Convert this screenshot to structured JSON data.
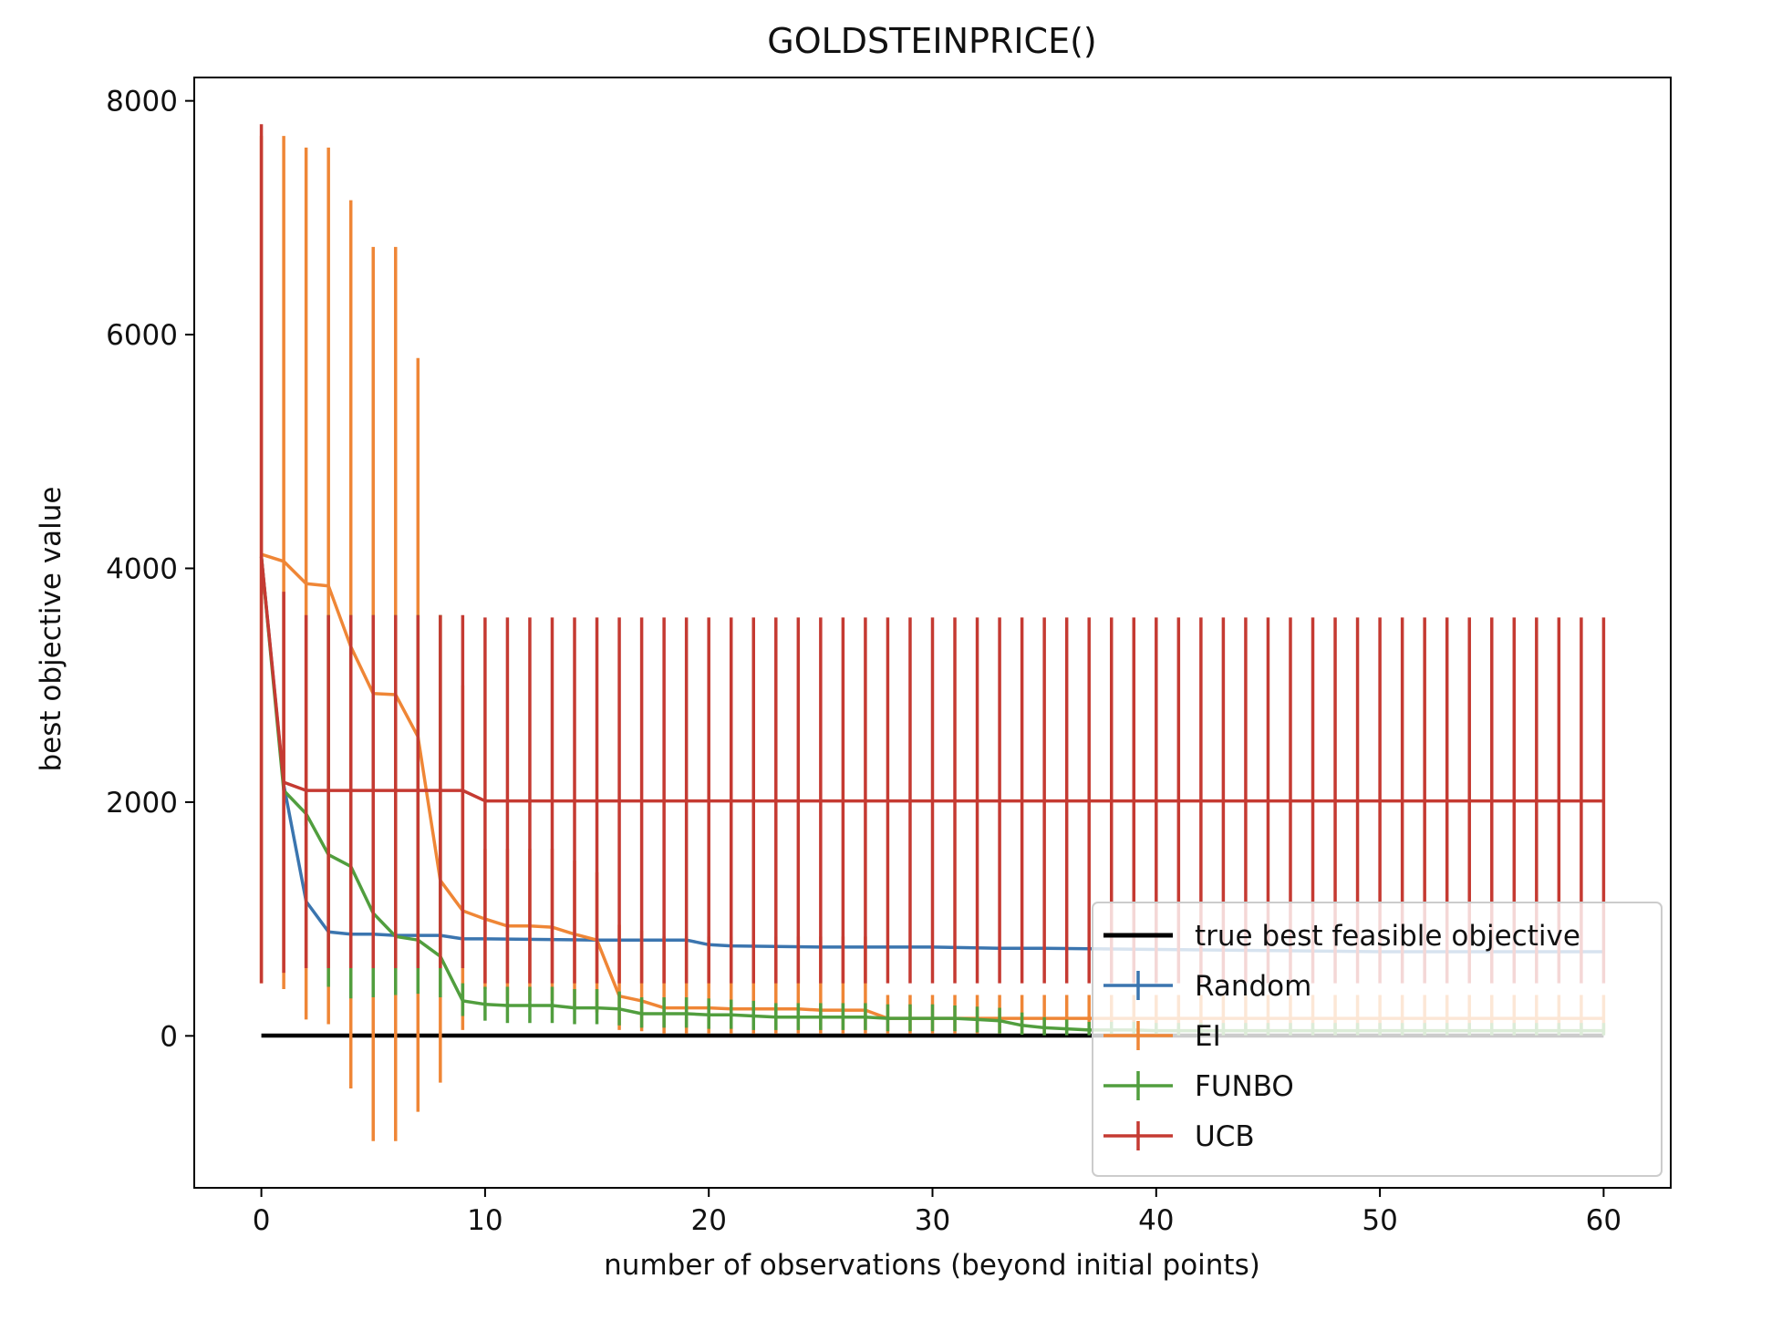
{
  "chart_data": {
    "type": "line",
    "title": "GOLDSTEINPRICE()",
    "xlabel": "number of observations (beyond initial points)",
    "ylabel": "best objective value",
    "xlim": [
      -3,
      63
    ],
    "ylim": [
      -1300,
      8200
    ],
    "xticks": [
      0,
      10,
      20,
      30,
      40,
      50,
      60
    ],
    "yticks": [
      0,
      2000,
      4000,
      6000,
      8000
    ],
    "xtick_labels": [
      "0",
      "10",
      "20",
      "30",
      "40",
      "50",
      "60"
    ],
    "ytick_labels": [
      "0",
      "2000",
      "4000",
      "6000",
      "8000"
    ],
    "grid": false,
    "legend": {
      "position": "lower-right"
    },
    "reference_line": {
      "name": "true best feasible objective",
      "value": 3,
      "x_range": [
        0,
        60
      ],
      "color": "#000000"
    },
    "series": [
      {
        "name": "Random",
        "color": "#3b75af",
        "errorbars": false,
        "x": [
          0,
          1,
          2,
          3,
          4,
          5,
          6,
          7,
          8,
          9,
          10,
          15,
          19,
          20,
          21,
          25,
          30,
          33,
          35,
          40,
          45,
          50,
          55,
          60
        ],
        "mean": [
          4100,
          2150,
          1150,
          890,
          870,
          870,
          860,
          860,
          860,
          830,
          830,
          820,
          820,
          780,
          770,
          760,
          760,
          750,
          750,
          740,
          730,
          720,
          720,
          720
        ]
      },
      {
        "name": "EI",
        "color": "#ef8636",
        "x": [
          0,
          1,
          2,
          3,
          4,
          5,
          6,
          7,
          8,
          9,
          10,
          11,
          12,
          13,
          14,
          15,
          16,
          17,
          18,
          19,
          20,
          21,
          22,
          23,
          24,
          25,
          26,
          27,
          28,
          29,
          30,
          31,
          32,
          33,
          34,
          35,
          36,
          37,
          38,
          39,
          40,
          41,
          42,
          43,
          44,
          45,
          46,
          47,
          48,
          49,
          50,
          51,
          52,
          53,
          54,
          55,
          56,
          57,
          58,
          59,
          60
        ],
        "mean": [
          4120,
          4060,
          3870,
          3850,
          3330,
          2930,
          2920,
          2560,
          1330,
          1070,
          1000,
          940,
          940,
          930,
          870,
          820,
          340,
          300,
          240,
          240,
          240,
          230,
          230,
          230,
          230,
          220,
          220,
          220,
          150,
          150,
          150,
          150,
          150,
          150,
          150,
          150,
          150,
          150,
          150,
          150,
          150,
          150,
          150,
          150,
          150,
          150,
          150,
          150,
          150,
          150,
          150,
          150,
          150,
          150,
          150,
          150,
          150,
          150,
          150,
          150,
          150
        ],
        "upper": [
          7700,
          7700,
          7600,
          7600,
          7150,
          6750,
          6750,
          5800,
          3600,
          3000,
          1600,
          1600,
          1600,
          1600,
          1500,
          1400,
          950,
          900,
          850,
          850,
          850,
          850,
          850,
          850,
          850,
          850,
          850,
          850,
          350,
          350,
          350,
          350,
          350,
          350,
          350,
          350,
          350,
          350,
          350,
          350,
          350,
          350,
          350,
          350,
          350,
          350,
          350,
          350,
          350,
          350,
          350,
          350,
          350,
          350,
          350,
          350,
          350,
          350,
          350,
          350,
          350
        ],
        "lower": [
          450,
          400,
          140,
          100,
          -450,
          -900,
          -900,
          -650,
          -400,
          50,
          400,
          300,
          300,
          300,
          250,
          200,
          50,
          40,
          20,
          20,
          20,
          20,
          20,
          20,
          20,
          20,
          20,
          20,
          20,
          20,
          20,
          20,
          20,
          20,
          20,
          20,
          20,
          20,
          20,
          20,
          20,
          20,
          20,
          20,
          20,
          20,
          20,
          20,
          20,
          20,
          20,
          20,
          20,
          20,
          20,
          20,
          20,
          20,
          20,
          20,
          20
        ]
      },
      {
        "name": "FUNBO",
        "color": "#519e3e",
        "x": [
          0,
          1,
          2,
          3,
          4,
          5,
          6,
          7,
          8,
          9,
          10,
          11,
          12,
          13,
          14,
          15,
          16,
          17,
          18,
          19,
          20,
          21,
          22,
          23,
          24,
          25,
          26,
          27,
          28,
          29,
          30,
          31,
          32,
          33,
          34,
          35,
          36,
          37,
          38,
          39,
          40,
          41,
          42,
          43,
          44,
          45,
          46,
          47,
          48,
          49,
          50,
          51,
          52,
          53,
          54,
          55,
          56,
          57,
          58,
          59,
          60
        ],
        "mean": [
          4100,
          2100,
          1900,
          1550,
          1450,
          1050,
          850,
          820,
          680,
          300,
          270,
          260,
          260,
          260,
          240,
          240,
          230,
          190,
          190,
          190,
          180,
          180,
          170,
          160,
          160,
          160,
          160,
          160,
          150,
          150,
          150,
          150,
          140,
          130,
          90,
          70,
          60,
          50,
          50,
          50,
          45,
          45,
          45,
          45,
          45,
          45,
          45,
          45,
          45,
          45,
          45,
          45,
          45,
          45,
          45,
          45,
          45,
          45,
          45,
          45,
          45
        ],
        "upper": [
          4100,
          2100,
          2000,
          3600,
          3600,
          3600,
          3600,
          3600,
          3600,
          450,
          420,
          420,
          420,
          420,
          400,
          400,
          380,
          330,
          330,
          330,
          320,
          310,
          300,
          280,
          280,
          280,
          280,
          280,
          270,
          270,
          270,
          260,
          250,
          240,
          200,
          160,
          140,
          120,
          120,
          120,
          110,
          110,
          110,
          110,
          110,
          110,
          110,
          110,
          110,
          110,
          110,
          110,
          110,
          110,
          110,
          110,
          110,
          110,
          110,
          110,
          110
        ],
        "lower": [
          4100,
          2100,
          1800,
          420,
          320,
          330,
          350,
          360,
          330,
          170,
          130,
          110,
          110,
          110,
          100,
          100,
          90,
          70,
          70,
          70,
          60,
          60,
          50,
          50,
          50,
          50,
          50,
          50,
          40,
          40,
          40,
          40,
          30,
          20,
          10,
          5,
          5,
          5,
          5,
          5,
          5,
          5,
          5,
          5,
          5,
          5,
          5,
          5,
          5,
          5,
          5,
          5,
          5,
          5,
          5,
          5,
          5,
          5,
          5,
          5,
          5
        ]
      },
      {
        "name": "UCB",
        "color": "#c53a32",
        "x": [
          0,
          1,
          2,
          3,
          4,
          5,
          6,
          7,
          8,
          9,
          10,
          11,
          12,
          13,
          14,
          15,
          16,
          17,
          18,
          19,
          20,
          21,
          22,
          23,
          24,
          25,
          26,
          27,
          28,
          29,
          30,
          31,
          32,
          33,
          34,
          35,
          36,
          37,
          38,
          39,
          40,
          41,
          42,
          43,
          44,
          45,
          46,
          47,
          48,
          49,
          50,
          51,
          52,
          53,
          54,
          55,
          56,
          57,
          58,
          59,
          60
        ],
        "mean": [
          4100,
          2170,
          2100,
          2100,
          2100,
          2100,
          2100,
          2100,
          2100,
          2100,
          2010,
          2010,
          2010,
          2010,
          2010,
          2010,
          2010,
          2010,
          2010,
          2010,
          2010,
          2010,
          2010,
          2010,
          2010,
          2010,
          2010,
          2010,
          2010,
          2010,
          2010,
          2010,
          2010,
          2010,
          2010,
          2010,
          2010,
          2010,
          2010,
          2010,
          2010,
          2010,
          2010,
          2010,
          2010,
          2010,
          2010,
          2010,
          2010,
          2010,
          2010,
          2010,
          2010,
          2010,
          2010,
          2010,
          2010,
          2010,
          2010,
          2010,
          2010
        ],
        "upper": [
          7800,
          3800,
          3600,
          3600,
          3600,
          3600,
          3600,
          3600,
          3600,
          3600,
          3580,
          3580,
          3580,
          3580,
          3580,
          3580,
          3580,
          3580,
          3580,
          3580,
          3580,
          3580,
          3580,
          3580,
          3580,
          3580,
          3580,
          3580,
          3580,
          3580,
          3580,
          3580,
          3580,
          3580,
          3580,
          3580,
          3580,
          3580,
          3580,
          3580,
          3580,
          3580,
          3580,
          3580,
          3580,
          3580,
          3580,
          3580,
          3580,
          3580,
          3580,
          3580,
          3580,
          3580,
          3580,
          3580,
          3580,
          3580,
          3580,
          3580,
          3580
        ],
        "lower": [
          450,
          540,
          580,
          580,
          580,
          580,
          580,
          580,
          580,
          580,
          450,
          450,
          450,
          450,
          450,
          450,
          450,
          450,
          450,
          450,
          450,
          450,
          450,
          450,
          450,
          450,
          450,
          450,
          450,
          450,
          450,
          450,
          450,
          450,
          450,
          450,
          450,
          450,
          450,
          450,
          450,
          450,
          450,
          450,
          450,
          450,
          450,
          450,
          450,
          450,
          450,
          450,
          450,
          450,
          450,
          450,
          450,
          450,
          450,
          450,
          450
        ]
      }
    ]
  }
}
